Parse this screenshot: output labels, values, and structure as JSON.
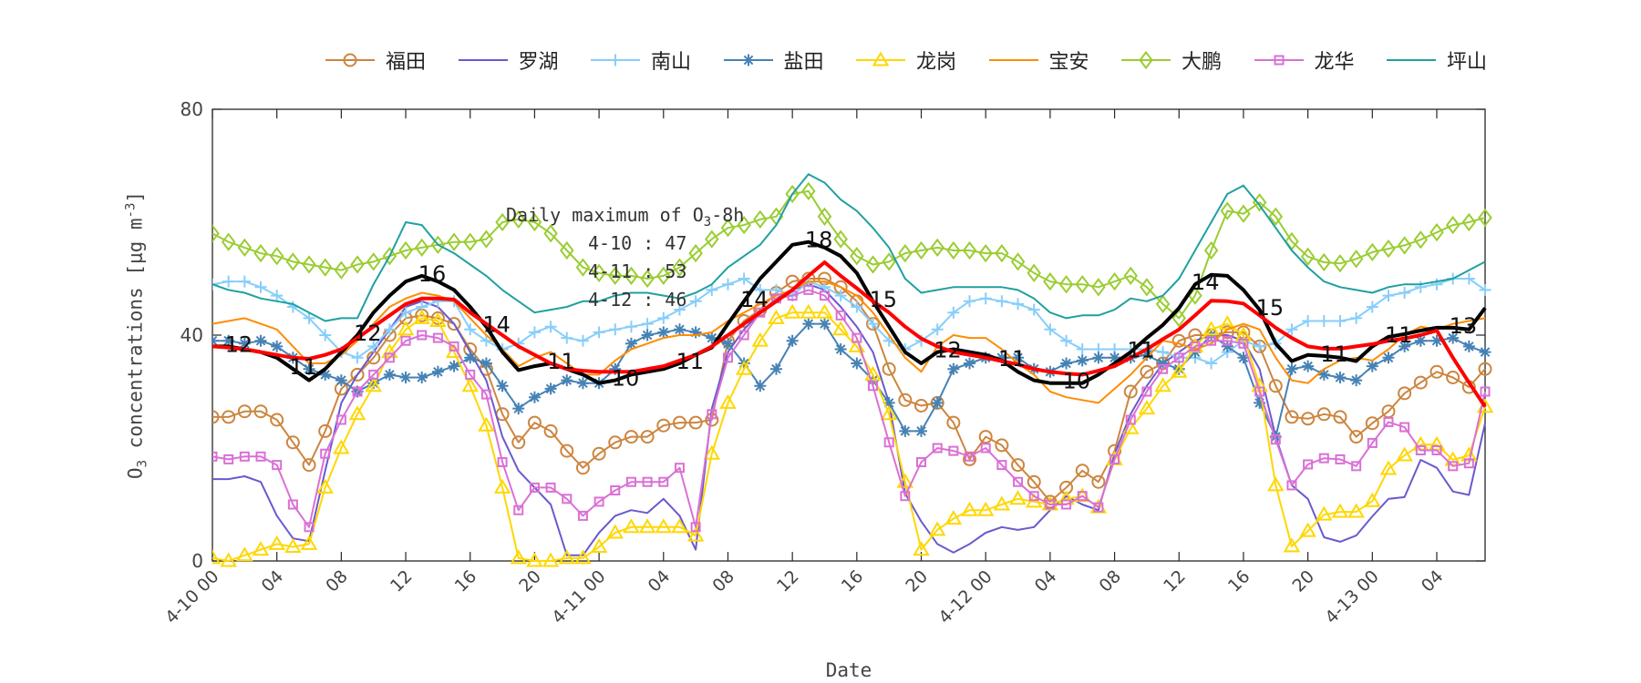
{
  "legend": [
    {
      "name": "福田",
      "color": "#CD853F",
      "marker": "circle"
    },
    {
      "name": "罗湖",
      "color": "#6A5ACD",
      "marker": "none"
    },
    {
      "name": "南山",
      "color": "#87CEFA",
      "marker": "plus"
    },
    {
      "name": "盐田",
      "color": "#4682B4",
      "marker": "star"
    },
    {
      "name": "龙岗",
      "color": "#FFD700",
      "marker": "triangle"
    },
    {
      "name": "宝安",
      "color": "#FF8C00",
      "marker": "none"
    },
    {
      "name": "大鹏",
      "color": "#9ACD32",
      "marker": "diamond"
    },
    {
      "name": "龙华",
      "color": "#DA70D6",
      "marker": "square"
    },
    {
      "name": "坪山",
      "color": "#20A0A0",
      "marker": "none"
    }
  ],
  "annotation": {
    "title_pre": "Daily maximum of O",
    "title_sub": "3",
    "title_post": "-8h",
    "lines": [
      "4-10 : 47",
      "4-11 : 53",
      "4-12 : 46"
    ]
  },
  "chart_data": {
    "type": "line",
    "xlabel": "Date",
    "ylabel": {
      "pre": "O",
      "sub": "3",
      "mid": " concentrations [μg m",
      "sup": "-3",
      "post": "]"
    },
    "x_unit": "hour from 4-10 00",
    "xlim": [
      0,
      79
    ],
    "ylim": [
      0,
      80
    ],
    "yticks": [
      0,
      40,
      80
    ],
    "xticks": [
      {
        "h": 0,
        "label": "4-10 00"
      },
      {
        "h": 4,
        "label": "04"
      },
      {
        "h": 8,
        "label": "08"
      },
      {
        "h": 12,
        "label": "12"
      },
      {
        "h": 16,
        "label": "16"
      },
      {
        "h": 20,
        "label": "20"
      },
      {
        "h": 24,
        "label": "4-11 00"
      },
      {
        "h": 28,
        "label": "04"
      },
      {
        "h": 32,
        "label": "08"
      },
      {
        "h": 36,
        "label": "12"
      },
      {
        "h": 40,
        "label": "16"
      },
      {
        "h": 44,
        "label": "20"
      },
      {
        "h": 48,
        "label": "4-12 00"
      },
      {
        "h": 52,
        "label": "04"
      },
      {
        "h": 56,
        "label": "08"
      },
      {
        "h": 60,
        "label": "12"
      },
      {
        "h": 64,
        "label": "16"
      },
      {
        "h": 68,
        "label": "20"
      },
      {
        "h": 72,
        "label": "4-13 00"
      },
      {
        "h": 76,
        "label": "04"
      }
    ],
    "grid": false,
    "legend_position": "top",
    "series": [
      {
        "name": "福田",
        "values": [
          25.5,
          25.5,
          26.5,
          26.5,
          25,
          21,
          17,
          23,
          30.5,
          33,
          36,
          40,
          43,
          43.5,
          43,
          42,
          37.5,
          34,
          26,
          21,
          24.5,
          23,
          19.5,
          16.5,
          19,
          21,
          22,
          22,
          24,
          24.5,
          24.5,
          25,
          39,
          42.5,
          44.5,
          47.5,
          49.5,
          50,
          50,
          48.5,
          46,
          42,
          34,
          28.5,
          27.5,
          28,
          24.5,
          18,
          22,
          20.5,
          17,
          14,
          10.5,
          13,
          16,
          14,
          19.5,
          30,
          33.5,
          35,
          39,
          40,
          40,
          40.5,
          40.5,
          38,
          31,
          25.5,
          25.2,
          26,
          25.5,
          22,
          24.4,
          26.5,
          29.7,
          31.6,
          33.5,
          32.5,
          30.8,
          34
        ]
      },
      {
        "name": "罗湖",
        "values": [
          14.5,
          14.5,
          15,
          14,
          8,
          4,
          3.5,
          16,
          28,
          33,
          37,
          41,
          45,
          46,
          45,
          42,
          37,
          32,
          22,
          16,
          13,
          10,
          1,
          1,
          5,
          8,
          9,
          8.5,
          11,
          8,
          2,
          27,
          37,
          41,
          44,
          46.5,
          48,
          49,
          48,
          45,
          41.5,
          37,
          28,
          12,
          7,
          3,
          1.5,
          3,
          5,
          6,
          5.5,
          6,
          9,
          11.5,
          10,
          9,
          19,
          26,
          31,
          35,
          37,
          39,
          40,
          40,
          39,
          34,
          22,
          13.4,
          11,
          4.2,
          3.4,
          4.5,
          7.9,
          11,
          11.3,
          17.9,
          16.5,
          12.3,
          11.7,
          24.4
        ]
      },
      {
        "name": "南山",
        "values": [
          49,
          49.5,
          49.5,
          48.5,
          47,
          45,
          43,
          40,
          37,
          36,
          38,
          41,
          44,
          45,
          46,
          46,
          41,
          39,
          37.5,
          38.5,
          40.5,
          41.5,
          39.5,
          39,
          40.5,
          41,
          41.5,
          42,
          43,
          44.5,
          46,
          48,
          49,
          50,
          48,
          48,
          47,
          49.5,
          48.5,
          47,
          45,
          42,
          39,
          37.5,
          39,
          41,
          44,
          46,
          46.5,
          46,
          45.5,
          44.5,
          41,
          39,
          37.5,
          37.5,
          37.5,
          37.5,
          37.5,
          37,
          36,
          36,
          35,
          37,
          39,
          38,
          38.5,
          41,
          42.5,
          42.5,
          42.5,
          43,
          45,
          47,
          47.5,
          48.5,
          49,
          50,
          50,
          48
        ]
      },
      {
        "name": "盐田",
        "values": [
          39,
          39,
          38.5,
          39,
          38,
          36,
          34,
          33,
          32,
          30,
          31.5,
          33,
          32.5,
          32.5,
          33.5,
          34.5,
          36,
          35,
          31,
          27,
          29,
          30.5,
          32,
          31.5,
          31.5,
          34,
          38.5,
          40,
          40.5,
          41,
          40.5,
          39.5,
          38.5,
          35,
          31,
          34,
          39,
          42,
          42,
          37.5,
          35,
          32,
          28,
          23,
          23,
          28,
          34,
          35,
          36,
          36,
          36,
          34,
          33.5,
          35,
          35.5,
          36,
          36,
          36,
          36.5,
          35,
          34,
          37,
          40,
          38,
          36,
          28,
          22,
          34,
          34.5,
          33,
          32.5,
          32,
          34.5,
          36,
          38,
          39,
          39,
          39.5,
          38,
          37
        ]
      },
      {
        "name": "龙岗",
        "values": [
          0.5,
          0,
          1,
          2,
          3,
          2.5,
          3,
          13,
          20,
          26,
          31,
          37,
          41,
          43,
          42.5,
          37,
          31,
          24,
          13,
          0.5,
          0,
          0,
          0.5,
          0.5,
          2.5,
          5,
          6,
          6,
          6,
          6,
          4.5,
          19,
          28,
          34,
          39,
          43,
          44,
          44,
          44,
          41,
          38,
          33,
          26,
          14,
          2,
          5.5,
          7.5,
          9,
          9,
          10,
          11,
          10.5,
          10,
          11,
          11.5,
          9.5,
          18,
          23.5,
          27,
          31,
          33.5,
          38,
          41,
          42,
          40,
          31,
          13.4,
          2.6,
          5.3,
          8.2,
          8.7,
          8.7,
          10.6,
          16.3,
          18.7,
          20.6,
          20.6,
          17.9,
          18.7,
          27.3
        ]
      },
      {
        "name": "宝安",
        "values": [
          42,
          42.5,
          43,
          42,
          41,
          38,
          35,
          35,
          36.5,
          39,
          42,
          45,
          46.5,
          47.5,
          47,
          46,
          43,
          40,
          37.5,
          34.5,
          36,
          37,
          35,
          33,
          33,
          35.5,
          37.5,
          38.5,
          39.5,
          40,
          40,
          40.5,
          42.5,
          44,
          45.5,
          47,
          48,
          49.5,
          49.5,
          48.5,
          47,
          44,
          40,
          36,
          33.5,
          38,
          40,
          39.5,
          39.5,
          37.5,
          35,
          33,
          30,
          29,
          28.5,
          28,
          30.5,
          33,
          36,
          39,
          38.5,
          37.5,
          38.5,
          41,
          42,
          41,
          36,
          32,
          31.5,
          34,
          35.5,
          36,
          35.5,
          37.5,
          40,
          41.5,
          41,
          42,
          42.5,
          43
        ]
      },
      {
        "name": "大鹏",
        "values": [
          58,
          56.5,
          55.5,
          54.5,
          54,
          53,
          52.5,
          52,
          51.5,
          52.5,
          53,
          54,
          55,
          55.5,
          56,
          56.5,
          56.5,
          57,
          60,
          60.5,
          60,
          58,
          55,
          52,
          51,
          50.5,
          50.5,
          50,
          50.5,
          52,
          54.5,
          57,
          59,
          59.5,
          60.5,
          61,
          65,
          65.5,
          61,
          57,
          54,
          52.5,
          53,
          54.5,
          55,
          55.5,
          55,
          55,
          54.5,
          54.5,
          53,
          51,
          49.5,
          49,
          49,
          48.5,
          49.5,
          50.5,
          48.5,
          45.5,
          43,
          47,
          55,
          62,
          61.5,
          63.5,
          61,
          56.6,
          53.9,
          52.9,
          52.7,
          53.5,
          54.7,
          55.3,
          55.9,
          56.9,
          58.2,
          59.5,
          60,
          60.8
        ]
      },
      {
        "name": "龙华",
        "values": [
          18.5,
          18,
          18.5,
          18.5,
          17,
          10,
          6,
          19,
          25,
          30,
          33,
          36,
          39,
          40,
          39.5,
          38,
          33,
          29.5,
          17.5,
          9,
          13,
          13,
          11,
          8,
          10.5,
          12.5,
          14,
          14,
          14,
          16.5,
          6,
          26,
          36,
          40,
          44,
          46.5,
          47,
          48,
          47,
          43.5,
          39.5,
          31,
          21,
          11.5,
          17.5,
          20,
          19.5,
          18.5,
          20,
          17,
          14,
          11.5,
          10,
          10,
          11.5,
          9.5,
          18,
          25,
          30,
          34,
          36,
          38,
          39,
          39,
          38.5,
          30,
          21.5,
          13.4,
          17.1,
          18.2,
          18,
          16.8,
          20.9,
          24.6,
          23.7,
          19.6,
          19.6,
          16.8,
          17.3,
          30
        ]
      },
      {
        "name": "坪山",
        "values": [
          49,
          48,
          47.5,
          46.5,
          46,
          45.5,
          44,
          42.5,
          43,
          43,
          49,
          54,
          60,
          59.5,
          56,
          54.5,
          52.5,
          50.5,
          48,
          46,
          44,
          44.5,
          45,
          46,
          46,
          47,
          47.5,
          47.5,
          47,
          46.5,
          47.5,
          49,
          52,
          54,
          56,
          59.5,
          65,
          68.5,
          67,
          64,
          62,
          59,
          55.5,
          50,
          47.5,
          48,
          48.5,
          48.5,
          48.5,
          48.5,
          48,
          46.5,
          44,
          43,
          43.5,
          43.5,
          44.5,
          46.5,
          46,
          47,
          50,
          55,
          60,
          65,
          66.5,
          63,
          59,
          55,
          52,
          49.5,
          48.5,
          48,
          47.5,
          48.5,
          49,
          49,
          49.5,
          50,
          51.5,
          53
        ]
      },
      {
        "color": "#000000",
        "style": "thick",
        "values": [
          38,
          38,
          37.5,
          37,
          36,
          34,
          32,
          34,
          37,
          40,
          44,
          47,
          49.5,
          50.5,
          49.5,
          48,
          45,
          41.5,
          37,
          33.8,
          34.5,
          35,
          34,
          33,
          31.5,
          32,
          33,
          33.5,
          34,
          35,
          36.5,
          37.8,
          42,
          46,
          50,
          53,
          56,
          56.5,
          55.5,
          54,
          51,
          46,
          41.5,
          37,
          35,
          37,
          37.5,
          37,
          36.5,
          35.5,
          33.5,
          32,
          31.5,
          31.5,
          31.5,
          33,
          35,
          37,
          39.5,
          41.8,
          44.8,
          49,
          50.7,
          50.5,
          48,
          44.5,
          38.5,
          35.4,
          36.5,
          36.3,
          36,
          35.4,
          38,
          39.7,
          40.2,
          40.8,
          41.3,
          41.3,
          41,
          44.8
        ]
      },
      {
        "color": "#FF0000",
        "style": "thick",
        "values": [
          38,
          37.8,
          37.5,
          37,
          36.5,
          36,
          35.8,
          36.5,
          37.5,
          39.5,
          41.5,
          43.5,
          45.5,
          46.5,
          46.5,
          46.3,
          44,
          42,
          40,
          38,
          36.5,
          35,
          34,
          33.7,
          33.5,
          33.5,
          33.5,
          34,
          34.5,
          35.5,
          36.5,
          38,
          40,
          42,
          44,
          46,
          48,
          50.5,
          52.9,
          50.5,
          48.3,
          46,
          44,
          41.5,
          39.4,
          38,
          37,
          36.5,
          36,
          35.4,
          34.8,
          34,
          33.5,
          33.2,
          33,
          33.7,
          34.5,
          36,
          37.5,
          39.3,
          41,
          43.5,
          46.1,
          46,
          45.6,
          43.5,
          41.3,
          39.5,
          38,
          37.6,
          37.6,
          38,
          38.4,
          39,
          39.4,
          40,
          40.8,
          36,
          31.6,
          27.3
        ]
      }
    ],
    "point_labels": [
      {
        "h": 1,
        "text": "12"
      },
      {
        "h": 5,
        "text": "11"
      },
      {
        "h": 9,
        "text": "12"
      },
      {
        "h": 13,
        "text": "16"
      },
      {
        "h": 17,
        "text": "14"
      },
      {
        "h": 21,
        "text": "11"
      },
      {
        "h": 25,
        "text": "10"
      },
      {
        "h": 29,
        "text": "11"
      },
      {
        "h": 33,
        "text": "14"
      },
      {
        "h": 37,
        "text": "18"
      },
      {
        "h": 41,
        "text": "15"
      },
      {
        "h": 45,
        "text": "12"
      },
      {
        "h": 49,
        "text": "11"
      },
      {
        "h": 53,
        "text": "10"
      },
      {
        "h": 57,
        "text": "11"
      },
      {
        "h": 61,
        "text": "14"
      },
      {
        "h": 65,
        "text": "15"
      },
      {
        "h": 69,
        "text": "11"
      },
      {
        "h": 73,
        "text": "11"
      },
      {
        "h": 77,
        "text": "13"
      }
    ]
  }
}
